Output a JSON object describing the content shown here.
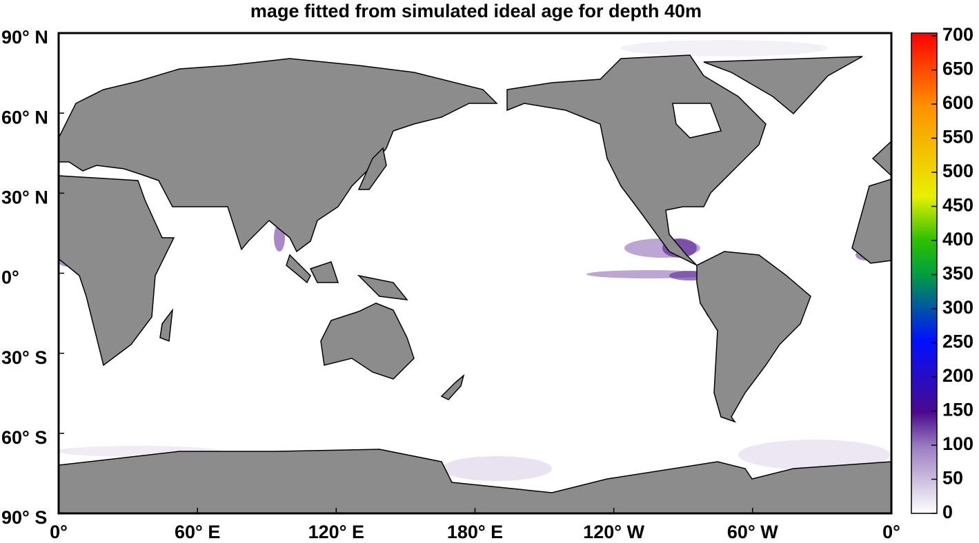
{
  "title": "mage fitted from simulated ideal age for depth 40m",
  "map": {
    "lon_lim": [
      0,
      360
    ],
    "lat_lim": [
      -90,
      90
    ],
    "lat_ticks": [
      {
        "value": 90,
        "label": "90° N"
      },
      {
        "value": 60,
        "label": "60° N"
      },
      {
        "value": 30,
        "label": "30° N"
      },
      {
        "value": 0,
        "label": "0°"
      },
      {
        "value": -30,
        "label": "30° S"
      },
      {
        "value": -60,
        "label": "60° S"
      },
      {
        "value": -90,
        "label": "90° S"
      }
    ],
    "lon_ticks": [
      {
        "value": 0,
        "label": "0°"
      },
      {
        "value": 60,
        "label": "60° E"
      },
      {
        "value": 120,
        "label": "120° E"
      },
      {
        "value": 180,
        "label": "180° E"
      },
      {
        "value": 240,
        "label": "120° W"
      },
      {
        "value": 300,
        "label": "60° W"
      },
      {
        "value": 360,
        "label": "0°"
      }
    ]
  },
  "colorbar": {
    "lim": [
      0,
      700
    ],
    "ticks": [
      0,
      50,
      100,
      150,
      200,
      250,
      300,
      350,
      400,
      450,
      500,
      550,
      600,
      650,
      700
    ]
  }
}
